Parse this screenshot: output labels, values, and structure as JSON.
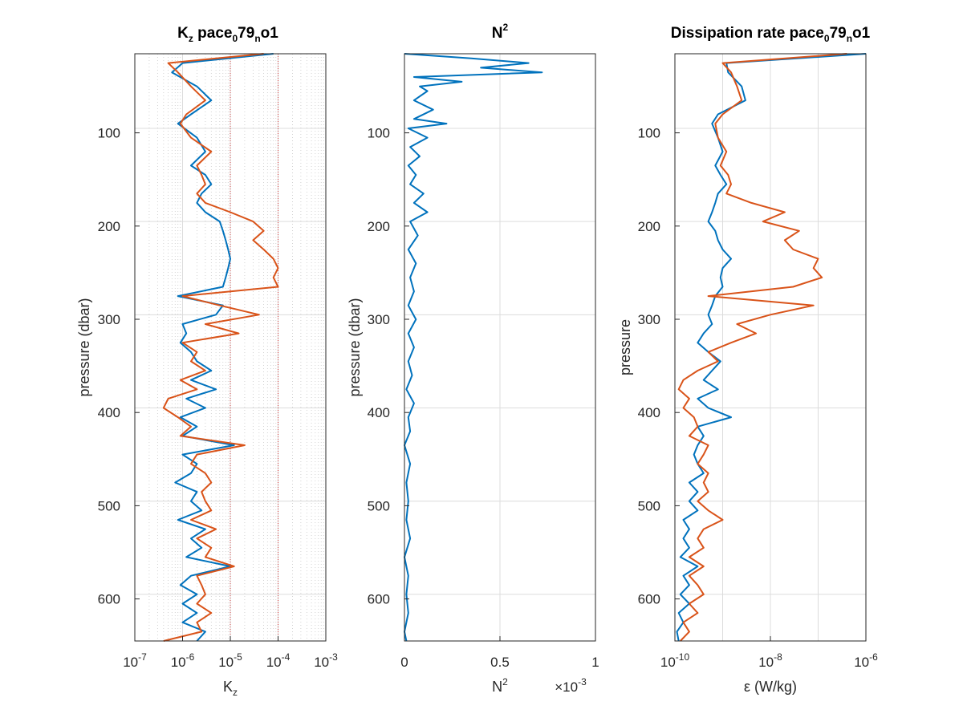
{
  "colors": {
    "series1": "#0072BD",
    "series2": "#D95319",
    "reference": "#d23c3c"
  },
  "chart_data": [
    {
      "type": "line",
      "title": {
        "main": "K",
        "sub": "z",
        "rest": " pace",
        "sub2": "0",
        "rest2": "79",
        "sub3": "n",
        "rest3": "o1"
      },
      "xlabel": {
        "main": "K",
        "sub": "z"
      },
      "ylabel": "pressure (dbar)",
      "xscale": "log",
      "xlim": [
        1e-07,
        0.001
      ],
      "ylim": [
        20,
        650
      ],
      "y_reversed": true,
      "grid": "minor",
      "x_ticks": [
        "-7",
        "-6",
        "-5",
        "-4",
        "-3"
      ],
      "x_tick_base": "10",
      "y_ticks": [
        "100",
        "200",
        "300",
        "400",
        "500",
        "600"
      ],
      "y": [
        20,
        30,
        40,
        55,
        70,
        85,
        95,
        110,
        125,
        140,
        150,
        160,
        170,
        180,
        190,
        200,
        210,
        220,
        230,
        240,
        250,
        260,
        270,
        280,
        290,
        300,
        310,
        320,
        330,
        340,
        350,
        360,
        370,
        380,
        390,
        400,
        410,
        420,
        430,
        440,
        450,
        460,
        470,
        480,
        490,
        500,
        510,
        520,
        530,
        540,
        550,
        560,
        570,
        580,
        590,
        600,
        610,
        620,
        630,
        640,
        650
      ],
      "series": [
        {
          "values": [
            8e-05,
            1e-06,
            6e-07,
            2e-06,
            4e-06,
            1.5e-06,
            8e-07,
            2e-06,
            3e-06,
            1.5e-06,
            3e-06,
            4e-06,
            2.5e-06,
            2e-06,
            3e-06,
            6e-06,
            7e-06,
            8e-06,
            9e-06,
            1e-05,
            9e-06,
            8e-06,
            7e-06,
            8e-07,
            7e-06,
            5e-06,
            1e-06,
            1.2e-06,
            9e-07,
            1.5e-06,
            2e-06,
            4e-06,
            1.5e-06,
            5e-06,
            1.2e-06,
            3e-06,
            9e-07,
            2e-06,
            1e-06,
            1.2e-05,
            1e-06,
            2e-06,
            1.5e-06,
            7e-07,
            2e-06,
            1.5e-06,
            2.5e-06,
            8e-07,
            3e-06,
            1.5e-06,
            2.5e-06,
            1.2e-06,
            1e-05,
            1.5e-06,
            9e-07,
            2e-06,
            1e-06,
            2e-06,
            1e-06,
            3e-06,
            2e-06
          ]
        },
        {
          "values": [
            5e-05,
            5e-07,
            8e-07,
            1.5e-06,
            3e-06,
            1.2e-06,
            9e-07,
            1.5e-06,
            4e-06,
            2e-06,
            2.5e-06,
            3e-06,
            2e-06,
            3e-06,
            1e-05,
            3e-05,
            5e-05,
            3e-05,
            5e-05,
            8e-05,
            0.0001,
            8e-05,
            0.0001,
            1e-06,
            6e-06,
            4e-05,
            3e-06,
            1.5e-05,
            1e-06,
            2e-06,
            1.5e-06,
            3e-06,
            9e-07,
            2e-06,
            5e-07,
            4e-07,
            8e-07,
            1.5e-06,
            9e-07,
            2e-05,
            2e-06,
            1.5e-06,
            3e-06,
            4e-06,
            2.5e-06,
            3e-06,
            4e-06,
            1.5e-06,
            5e-06,
            2e-06,
            4e-06,
            3e-06,
            1.2e-05,
            2e-06,
            2.5e-06,
            3e-06,
            2e-06,
            4e-06,
            2e-06,
            2.5e-06,
            4e-07
          ]
        }
      ],
      "reference_lines_x": [
        1e-05,
        0.0001
      ]
    },
    {
      "type": "line",
      "title": {
        "main": "N",
        "sup": "2"
      },
      "xlabel": {
        "main": "N",
        "sup": "2"
      },
      "ylabel": "pressure (dbar)",
      "xlim": [
        0,
        1
      ],
      "ylim": [
        20,
        650
      ],
      "y_reversed": true,
      "grid": "major",
      "x_ticks": [
        "0",
        "0.5",
        "1"
      ],
      "x_multiplier": {
        "prefix": "×10",
        "exp": "-3"
      },
      "y_ticks": [
        "100",
        "200",
        "300",
        "400",
        "500",
        "600"
      ],
      "y": [
        20,
        25,
        30,
        35,
        40,
        45,
        50,
        55,
        60,
        70,
        80,
        90,
        95,
        100,
        110,
        120,
        130,
        140,
        150,
        160,
        170,
        180,
        190,
        200,
        215,
        230,
        245,
        260,
        275,
        290,
        305,
        320,
        335,
        350,
        365,
        380,
        395,
        410,
        425,
        440,
        460,
        480,
        500,
        520,
        540,
        560,
        580,
        600,
        620,
        640,
        650
      ],
      "series": [
        {
          "values": [
            0.0,
            0.35,
            0.65,
            0.4,
            0.72,
            0.05,
            0.3,
            0.08,
            0.12,
            0.05,
            0.15,
            0.05,
            0.22,
            0.02,
            0.12,
            0.03,
            0.08,
            0.02,
            0.06,
            0.03,
            0.1,
            0.05,
            0.12,
            0.03,
            0.07,
            0.02,
            0.06,
            0.03,
            0.05,
            0.02,
            0.06,
            0.02,
            0.05,
            0.02,
            0.04,
            0.01,
            0.05,
            0.02,
            0.03,
            0.0,
            0.03,
            0.01,
            0.02,
            0.01,
            0.03,
            0.0,
            0.02,
            0.01,
            0.02,
            0.0,
            0.01
          ]
        }
      ]
    },
    {
      "type": "line",
      "title": {
        "main": "Dissipation rate pace",
        "sub": "0",
        "rest": "79",
        "sub2": "n",
        "rest2": "o1"
      },
      "xlabel": {
        "main": "ε (W/kg)"
      },
      "ylabel": "pressure",
      "xscale": "log",
      "xlim": [
        1e-10,
        1e-06
      ],
      "ylim": [
        20,
        650
      ],
      "y_reversed": true,
      "grid": "major",
      "x_ticks": [
        "-10",
        "-8",
        "-6"
      ],
      "x_tick_base": "10",
      "y_ticks": [
        "100",
        "200",
        "300",
        "400",
        "500",
        "600"
      ],
      "y": [
        20,
        30,
        40,
        55,
        70,
        85,
        95,
        110,
        125,
        140,
        150,
        160,
        170,
        180,
        190,
        200,
        210,
        220,
        230,
        240,
        250,
        260,
        270,
        280,
        290,
        300,
        310,
        320,
        330,
        340,
        350,
        360,
        370,
        380,
        390,
        400,
        410,
        420,
        430,
        440,
        450,
        460,
        470,
        480,
        490,
        500,
        510,
        520,
        530,
        540,
        550,
        560,
        570,
        580,
        590,
        600,
        610,
        620,
        630,
        640,
        650
      ],
      "series": [
        {
          "values": [
            1e-06,
            1.2e-09,
            1.3e-09,
            2.5e-09,
            3e-09,
            8e-10,
            6e-10,
            8e-10,
            1e-09,
            7e-10,
            9e-10,
            1.2e-09,
            8e-10,
            7e-10,
            6e-10,
            5e-10,
            7e-10,
            8e-10,
            1e-09,
            1.5e-09,
            1e-09,
            9e-10,
            1e-09,
            7e-10,
            6e-10,
            5e-10,
            6e-10,
            4e-10,
            3e-10,
            5e-10,
            9e-10,
            6e-10,
            4e-10,
            8e-10,
            3e-10,
            5e-10,
            1.5e-09,
            3e-10,
            4e-10,
            3e-10,
            2.5e-10,
            3e-10,
            4e-10,
            2e-10,
            3e-10,
            2e-10,
            3e-10,
            1.5e-10,
            2e-10,
            1.5e-10,
            2e-10,
            1.3e-10,
            3e-10,
            1.5e-10,
            2e-10,
            1.3e-10,
            2e-10,
            1.2e-10,
            1.5e-10,
            1.1e-10,
            1.2e-10
          ]
        },
        {
          "values": [
            4e-07,
            1e-09,
            1.5e-09,
            2e-09,
            2.5e-09,
            1e-09,
            7e-10,
            8e-10,
            1.2e-09,
            9e-10,
            1.3e-09,
            1.5e-09,
            1.2e-09,
            4e-09,
            2e-08,
            7e-09,
            4e-08,
            2e-08,
            3e-08,
            1e-07,
            8e-08,
            1.2e-07,
            3e-08,
            5e-10,
            8e-08,
            1e-08,
            2e-09,
            5e-09,
            1.5e-09,
            5e-10,
            8e-10,
            3e-10,
            1.5e-10,
            1.2e-10,
            2e-10,
            1.5e-10,
            2.5e-10,
            3e-10,
            2e-10,
            5e-10,
            4e-10,
            3e-10,
            5e-10,
            4e-10,
            5e-10,
            3e-10,
            5e-10,
            1e-09,
            4e-10,
            3e-10,
            4e-10,
            2e-10,
            4e-10,
            2e-10,
            3e-10,
            4e-10,
            2e-10,
            3e-10,
            1.5e-10,
            2e-10,
            1.3e-10
          ]
        }
      ]
    }
  ]
}
